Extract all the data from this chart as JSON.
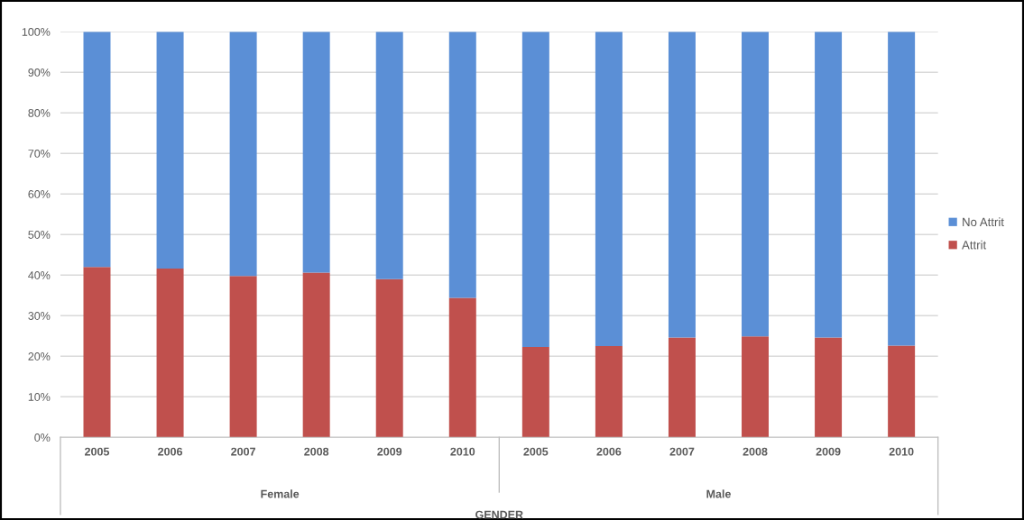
{
  "chart_data": {
    "type": "bar",
    "stacked": true,
    "categories": [
      "2005",
      "2006",
      "2007",
      "2008",
      "2009",
      "2010",
      "2005",
      "2006",
      "2007",
      "2008",
      "2009",
      "2010"
    ],
    "series": [
      {
        "name": "Attrit",
        "color": "#c0504d",
        "values": [
          42,
          41.6,
          39.8,
          40.6,
          39,
          34.4,
          22.3,
          22.5,
          24.6,
          24.9,
          24.6,
          22.6
        ]
      },
      {
        "name": "No Attrit",
        "color": "#5b8fd6",
        "values": [
          58,
          58.4,
          60.2,
          59.4,
          61,
          65.6,
          77.7,
          77.5,
          75.4,
          75.1,
          75.4,
          77.4
        ]
      }
    ],
    "ylim": [
      0,
      100
    ],
    "yticks": [
      {
        "value": 0,
        "label": "0%"
      },
      {
        "value": 10,
        "label": "10%"
      },
      {
        "value": 20,
        "label": "20%"
      },
      {
        "value": 30,
        "label": "30%"
      },
      {
        "value": 40,
        "label": "40%"
      },
      {
        "value": 50,
        "label": "50%"
      },
      {
        "value": 60,
        "label": "60%"
      },
      {
        "value": 70,
        "label": "70%"
      },
      {
        "value": 80,
        "label": "80%"
      },
      {
        "value": 90,
        "label": "90%"
      },
      {
        "value": 100,
        "label": "100%"
      }
    ],
    "grid": "y",
    "legend": "right",
    "xlabel": "GENDER",
    "annotations": [
      "Female",
      "Male"
    ]
  }
}
